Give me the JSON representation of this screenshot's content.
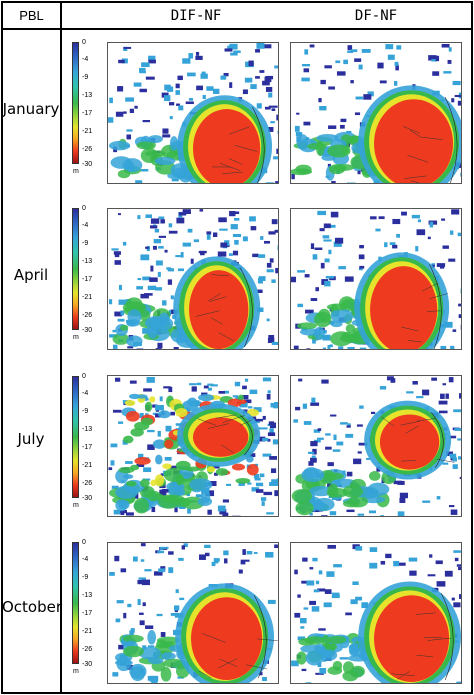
{
  "header": {
    "corner_label": "PBL",
    "columns": [
      "DIF-NF",
      "DF-NF"
    ]
  },
  "rows": [
    {
      "label": "January"
    },
    {
      "label": "April"
    },
    {
      "label": "July"
    },
    {
      "label": "October"
    }
  ],
  "colorbar": {
    "ticks": [
      "0",
      "-4",
      "-9",
      "-13",
      "-17",
      "-21",
      "-26",
      "-30"
    ],
    "unit": "m",
    "range": [
      -30,
      0
    ],
    "colors": [
      "#2b2f9e",
      "#35a3d8",
      "#38b84a",
      "#e6e32c",
      "#ee3b1f",
      "#9d1212"
    ]
  },
  "chart_data": {
    "type": "heatmap",
    "layout": "4 rows x 2 columns of maps",
    "row_labels": [
      "January",
      "April",
      "July",
      "October"
    ],
    "column_labels": [
      "DIF-NF",
      "DF-NF"
    ],
    "colorbar_ticks": [
      0,
      -4,
      -9,
      -13,
      -17,
      -21,
      -26,
      -30
    ],
    "colorbar_unit": "m",
    "value_range": [
      -30,
      0
    ]
  }
}
